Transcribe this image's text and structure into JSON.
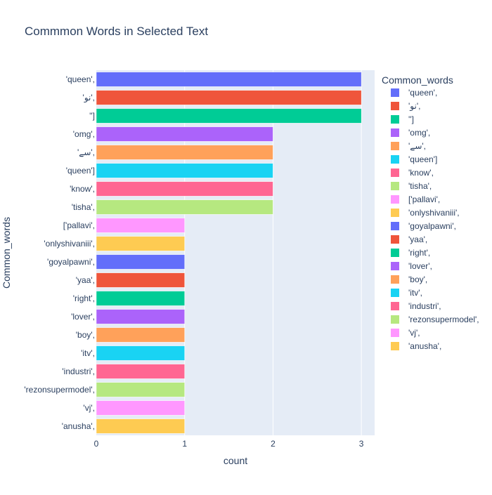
{
  "chart_data": {
    "type": "bar",
    "orientation": "horizontal",
    "title": "Commmon Words in Selected Text",
    "xlabel": "count",
    "ylabel": "Common_words",
    "legend_title": "Common_words",
    "legend_position": "right",
    "xlim": [
      0,
      3.15
    ],
    "xticks": [
      0,
      1,
      2,
      3
    ],
    "grid": true,
    "plot_background": "#e5ecf6",
    "categories": [
      "'queen',",
      "'نو',",
      "'']",
      "'omg',",
      "'سے',",
      "'queen']",
      "'know',",
      "'tisha',",
      "['pallavi',",
      "'onlyshivaniii',",
      "'goyalpawni',",
      "'yaa',",
      "'right',",
      "'lover',",
      "'boy',",
      "'itv',",
      "'industri',",
      "'rezonsupermodel',",
      "'vj',",
      "'anusha',"
    ],
    "values": [
      3,
      3,
      3,
      2,
      2,
      2,
      2,
      2,
      1,
      1,
      1,
      1,
      1,
      1,
      1,
      1,
      1,
      1,
      1,
      1
    ],
    "colors": [
      "#636efa",
      "#ef553b",
      "#00cc96",
      "#ab63fa",
      "#ffa15a",
      "#19d3f3",
      "#ff6692",
      "#b6e880",
      "#ff97ff",
      "#fecb52",
      "#636efa",
      "#ef553b",
      "#00cc96",
      "#ab63fa",
      "#ffa15a",
      "#19d3f3",
      "#ff6692",
      "#b6e880",
      "#ff97ff",
      "#fecb52"
    ]
  }
}
